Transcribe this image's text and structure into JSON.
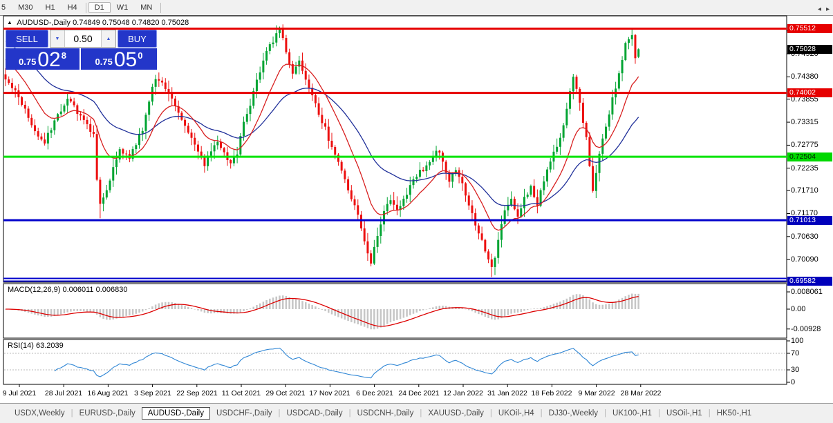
{
  "toolbar": {
    "timeframes": [
      {
        "label": "5",
        "active": false
      },
      {
        "label": "M30",
        "active": false
      },
      {
        "label": "H1",
        "active": false
      },
      {
        "label": "H4",
        "active": false
      },
      {
        "label": "D1",
        "active": true
      },
      {
        "label": "W1",
        "active": false
      },
      {
        "label": "MN",
        "active": false
      }
    ]
  },
  "title": {
    "arrow": "▲",
    "symbol": "AUDUSD-,Daily",
    "ohlc": "0.74849 0.75048 0.74820 0.75028"
  },
  "trade_panel": {
    "sell_label": "SELL",
    "buy_label": "BUY",
    "volume": "0.50",
    "spinner_down": "▼",
    "spinner_up": "▲",
    "sell_price": {
      "small": "0.75",
      "big": "02",
      "sup": "8"
    },
    "buy_price": {
      "small": "0.75",
      "big": "05",
      "sup": "0"
    }
  },
  "price_axis": {
    "ticks": [
      {
        "label": "0.75460",
        "value": 0.7546
      },
      {
        "label": "0.74920",
        "value": 0.7492
      },
      {
        "label": "0.74380",
        "value": 0.7438
      },
      {
        "label": "0.73855",
        "value": 0.73855
      },
      {
        "label": "0.73315",
        "value": 0.73315
      },
      {
        "label": "0.72775",
        "value": 0.72775
      },
      {
        "label": "0.72235",
        "value": 0.72235
      },
      {
        "label": "0.71710",
        "value": 0.7171
      },
      {
        "label": "0.71170",
        "value": 0.7117
      },
      {
        "label": "0.70630",
        "value": 0.7063
      },
      {
        "label": "0.70090",
        "value": 0.7009
      }
    ],
    "badges": [
      {
        "label": "0.75512",
        "value": 0.75512,
        "bg": "#e60000",
        "fg": "#ffffff"
      },
      {
        "label": "0.75028",
        "value": 0.75028,
        "bg": "#000000",
        "fg": "#ffffff"
      },
      {
        "label": "0.74002",
        "value": 0.74002,
        "bg": "#e60000",
        "fg": "#ffffff"
      },
      {
        "label": "0.72504",
        "value": 0.72504,
        "bg": "#00d800",
        "fg": "#002200"
      },
      {
        "label": "0.71013",
        "value": 0.71013,
        "bg": "#0000bb",
        "fg": "#ffffff"
      },
      {
        "label": "0.69582",
        "value": 0.69582,
        "bg": "#0000bb",
        "fg": "#ffffff"
      }
    ]
  },
  "macd_panel": {
    "label": "MACD(12,26,9) 0.006011 0.006830",
    "axis": [
      {
        "label": "0.008061",
        "value": 0.008061
      },
      {
        "label": "0.00",
        "value": 0
      },
      {
        "label": "-0.00928",
        "value": -0.00928
      }
    ]
  },
  "rsi_panel": {
    "label": "RSI(14) 63.2039",
    "axis": [
      {
        "label": "100",
        "value": 100
      },
      {
        "label": "70",
        "value": 70
      },
      {
        "label": "30",
        "value": 30
      },
      {
        "label": "0",
        "value": 0
      }
    ],
    "levels": [
      70,
      30
    ]
  },
  "time_axis": {
    "labels": [
      "9 Jul 2021",
      "28 Jul 2021",
      "16 Aug 2021",
      "3 Sep 2021",
      "22 Sep 2021",
      "11 Oct 2021",
      "29 Oct 2021",
      "17 Nov 2021",
      "6 Dec 2021",
      "24 Dec 2021",
      "12 Jan 2022",
      "31 Jan 2022",
      "18 Feb 2022",
      "9 Mar 2022",
      "28 Mar 2022"
    ]
  },
  "tabs": {
    "scroll_left": "◂",
    "scroll_right": "▸",
    "items": [
      {
        "label": "USDX,Weekly",
        "active": false
      },
      {
        "label": "EURUSD-,Daily",
        "active": false
      },
      {
        "label": "AUDUSD-,Daily",
        "active": true
      },
      {
        "label": "USDCHF-,Daily",
        "active": false
      },
      {
        "label": "USDCAD-,Daily",
        "active": false
      },
      {
        "label": "USDCNH-,Daily",
        "active": false
      },
      {
        "label": "XAUUSD-,Daily",
        "active": false
      },
      {
        "label": "UKOil-,H4",
        "active": false
      },
      {
        "label": "DJ30-,Weekly",
        "active": false
      },
      {
        "label": "UK100-,H1",
        "active": false
      },
      {
        "label": "USOil-,H1",
        "active": false
      },
      {
        "label": "HK50-,H1",
        "active": false
      }
    ]
  },
  "chart_data": {
    "type": "candlestick",
    "symbol": "AUDUSD-",
    "timeframe": "Daily",
    "current_ohlc": {
      "open": 0.74849,
      "high": 0.75048,
      "low": 0.7482,
      "close": 0.75028
    },
    "bars": 195,
    "close_anchors": [
      [
        0,
        0.7437
      ],
      [
        2,
        0.7408
      ],
      [
        4,
        0.7392
      ],
      [
        6,
        0.736
      ],
      [
        9,
        0.7308
      ],
      [
        12,
        0.7285
      ],
      [
        14,
        0.7315
      ],
      [
        16,
        0.735
      ],
      [
        19,
        0.7388
      ],
      [
        21,
        0.7368
      ],
      [
        24,
        0.7335
      ],
      [
        27,
        0.73
      ],
      [
        28,
        0.7195
      ],
      [
        29,
        0.7135
      ],
      [
        31,
        0.7175
      ],
      [
        33,
        0.7225
      ],
      [
        35,
        0.7268
      ],
      [
        38,
        0.7248
      ],
      [
        40,
        0.7282
      ],
      [
        42,
        0.7315
      ],
      [
        44,
        0.738
      ],
      [
        46,
        0.7438
      ],
      [
        48,
        0.7425
      ],
      [
        50,
        0.7405
      ],
      [
        53,
        0.7355
      ],
      [
        56,
        0.7312
      ],
      [
        59,
        0.7262
      ],
      [
        61,
        0.7232
      ],
      [
        63,
        0.7262
      ],
      [
        65,
        0.7288
      ],
      [
        67,
        0.7258
      ],
      [
        69,
        0.7232
      ],
      [
        71,
        0.7262
      ],
      [
        73,
        0.733
      ],
      [
        75,
        0.7372
      ],
      [
        77,
        0.7425
      ],
      [
        79,
        0.748
      ],
      [
        81,
        0.7512
      ],
      [
        83,
        0.7535
      ],
      [
        84,
        0.7548
      ],
      [
        86,
        0.7498
      ],
      [
        88,
        0.7448
      ],
      [
        90,
        0.7472
      ],
      [
        92,
        0.743
      ],
      [
        94,
        0.739
      ],
      [
        96,
        0.7352
      ],
      [
        98,
        0.7315
      ],
      [
        100,
        0.727
      ],
      [
        102,
        0.724
      ],
      [
        104,
        0.72
      ],
      [
        106,
        0.715
      ],
      [
        108,
        0.7112
      ],
      [
        110,
        0.7052
      ],
      [
        112,
        0.7005
      ],
      [
        114,
        0.7062
      ],
      [
        116,
        0.7128
      ],
      [
        118,
        0.7152
      ],
      [
        120,
        0.7122
      ],
      [
        122,
        0.7152
      ],
      [
        124,
        0.7182
      ],
      [
        126,
        0.7205
      ],
      [
        128,
        0.7222
      ],
      [
        130,
        0.7242
      ],
      [
        132,
        0.7268
      ],
      [
        134,
        0.7242
      ],
      [
        136,
        0.7195
      ],
      [
        138,
        0.7222
      ],
      [
        140,
        0.7188
      ],
      [
        142,
        0.7142
      ],
      [
        144,
        0.7095
      ],
      [
        146,
        0.7052
      ],
      [
        148,
        0.7008
      ],
      [
        149,
        0.6985
      ],
      [
        151,
        0.7052
      ],
      [
        153,
        0.7122
      ],
      [
        155,
        0.7148
      ],
      [
        157,
        0.7112
      ],
      [
        159,
        0.7152
      ],
      [
        161,
        0.7182
      ],
      [
        163,
        0.7138
      ],
      [
        165,
        0.7195
      ],
      [
        167,
        0.7245
      ],
      [
        169,
        0.7268
      ],
      [
        171,
        0.7322
      ],
      [
        173,
        0.7398
      ],
      [
        174,
        0.7438
      ],
      [
        176,
        0.7372
      ],
      [
        178,
        0.7295
      ],
      [
        180,
        0.7172
      ],
      [
        182,
        0.7255
      ],
      [
        184,
        0.7325
      ],
      [
        186,
        0.7385
      ],
      [
        188,
        0.7445
      ],
      [
        190,
        0.7512
      ],
      [
        192,
        0.7535
      ],
      [
        193,
        0.7488
      ],
      [
        194,
        0.75028
      ]
    ],
    "forced_bars": {
      "29": {
        "l": 0.7106
      },
      "84": {
        "h": 0.7556
      },
      "112": {
        "l": 0.6993
      },
      "149": {
        "l": 0.6968
      },
      "192": {
        "h": 0.7551
      },
      "194": {
        "o": 0.74849,
        "h": 0.75048,
        "l": 0.7482,
        "c": 0.75028
      }
    },
    "colors": {
      "up": "#00a432",
      "down": "#ec0f0f",
      "ma_fast": "#d82020",
      "ma_slow": "#20309a",
      "histogram": "#c6c6c6",
      "macd_signal": "#dd0000",
      "rsi_line": "#2f86d5",
      "level_dash": "#b8b8b8"
    },
    "moving_averages": [
      {
        "name": "fast",
        "alpha": 0.14,
        "init_offset": 0.0055
      },
      {
        "name": "slow",
        "alpha": 0.055,
        "init_offset": 0.0095
      }
    ],
    "horizontal_lines": [
      {
        "value": 0.75512,
        "color": "#e60000",
        "width": 3,
        "double": false
      },
      {
        "value": 0.74002,
        "color": "#e60000",
        "width": 3,
        "double": false
      },
      {
        "value": 0.72504,
        "color": "#00e400",
        "width": 3,
        "double": false
      },
      {
        "value": 0.71013,
        "color": "#0000cc",
        "width": 3,
        "double": false
      },
      {
        "value": 0.69582,
        "color": "#0000cc",
        "width": 2,
        "double": true
      }
    ],
    "indicators": {
      "macd": {
        "fast": 12,
        "slow": 26,
        "signal": 9,
        "display_values": [
          0.006011,
          0.00683
        ]
      },
      "rsi": {
        "period": 14,
        "display_value": 63.2039,
        "levels": [
          70,
          30
        ]
      }
    }
  }
}
